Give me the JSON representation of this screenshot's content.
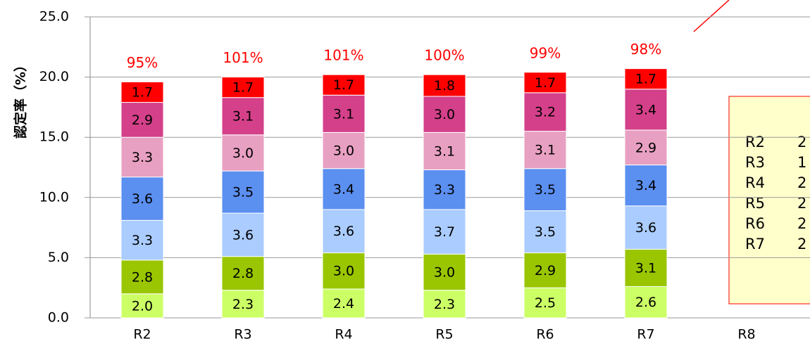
{
  "chart_data": {
    "type": "stacked_bar",
    "y_label": "認定率（%）",
    "categories": [
      "R2",
      "R3",
      "R4",
      "R5",
      "R6",
      "R7",
      "R8"
    ],
    "series": [
      {
        "color": "#ccff66",
        "values": [
          2.0,
          2.3,
          2.4,
          2.3,
          2.5,
          2.6,
          null
        ],
        "value_labels": [
          "2.0",
          "2.3",
          "2.4",
          "2.3",
          "2.5",
          "2.6",
          null
        ]
      },
      {
        "color": "#99c600",
        "values": [
          2.8,
          2.8,
          3.0,
          3.0,
          2.9,
          3.1,
          null
        ],
        "value_labels": [
          "2.8",
          "2.8",
          "3.0",
          "3.0",
          "2.9",
          "3.1",
          null
        ]
      },
      {
        "color": "#aaccff",
        "values": [
          3.3,
          3.6,
          3.6,
          3.7,
          3.5,
          3.6,
          null
        ],
        "value_labels": [
          "3.3",
          "3.6",
          "3.6",
          "3.7",
          "3.5",
          "3.6",
          null
        ]
      },
      {
        "color": "#5b8ff0",
        "values": [
          3.6,
          3.5,
          3.4,
          3.3,
          3.5,
          3.4,
          null
        ],
        "value_labels": [
          "3.6",
          "3.5",
          "3.4",
          "3.3",
          "3.5",
          "3.4",
          null
        ]
      },
      {
        "color": "#e8a0c2",
        "values": [
          3.3,
          3.0,
          3.0,
          3.1,
          3.1,
          2.9,
          null
        ],
        "value_labels": [
          "3.3",
          "3.0",
          "3.0",
          "3.1",
          "3.1",
          "2.9",
          null
        ]
      },
      {
        "color": "#d4408a",
        "values": [
          2.9,
          3.1,
          3.1,
          3.0,
          3.2,
          3.4,
          null
        ],
        "value_labels": [
          "2.9",
          "3.1",
          "3.1",
          "3.0",
          "3.2",
          "3.4",
          null
        ]
      },
      {
        "color": "#ff0000",
        "values": [
          1.7,
          1.7,
          1.7,
          1.8,
          1.7,
          1.7,
          null
        ],
        "value_labels": [
          "1.7",
          "1.7",
          "1.7",
          "1.8",
          "1.7",
          "1.7",
          null
        ]
      }
    ],
    "top_labels": [
      "95%",
      "101%",
      "101%",
      "100%",
      "99%",
      "98%",
      null
    ],
    "ylim": [
      0,
      25
    ],
    "yticks": [
      {
        "value": 0,
        "label": "0.0"
      },
      {
        "value": 5,
        "label": "5.0"
      },
      {
        "value": 10,
        "label": "10.0"
      },
      {
        "value": 15,
        "label": "15.0"
      },
      {
        "value": 20,
        "label": "20.0"
      },
      {
        "value": 25,
        "label": "25.0"
      }
    ],
    "grid": true,
    "note_box": [
      [
        "R2",
        "2"
      ],
      [
        "R3",
        "1"
      ],
      [
        "R4",
        "2"
      ],
      [
        "R5",
        "2"
      ],
      [
        "R6",
        "2"
      ],
      [
        "R7",
        "2"
      ]
    ]
  }
}
